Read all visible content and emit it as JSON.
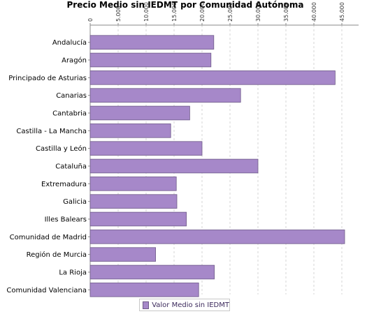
{
  "chart_data": {
    "type": "bar",
    "orientation": "horizontal",
    "title": "Precio Medio sin IEDMT por Comunidad Autónoma",
    "x_axis_position": "top",
    "xlim": [
      0,
      48000
    ],
    "x_ticks": [
      0,
      5000,
      10000,
      15000,
      20000,
      25000,
      30000,
      35000,
      40000,
      45000
    ],
    "x_tick_labels": [
      "0",
      "5.000",
      "10.000",
      "15.000",
      "20.000",
      "25.000",
      "30.000",
      "35.000",
      "40.000",
      "45.000"
    ],
    "grid": "vertical-dashed",
    "categories": [
      "Andalucía",
      "Aragón",
      "Principado de Asturias",
      "Canarias",
      "Cantabria",
      "Castilla - La Mancha",
      "Castilla y León",
      "Cataluña",
      "Extremadura",
      "Galicia",
      "Illes Balears",
      "Comunidad de Madrid",
      "Región de Murcia",
      "La Rioja",
      "Comunidad Valenciana"
    ],
    "series": [
      {
        "name": "Valor Medio sin IEDMT",
        "color": "#a688c9",
        "values": [
          22100,
          21600,
          43800,
          26900,
          17800,
          14400,
          20000,
          30000,
          15400,
          15500,
          17200,
          45500,
          11700,
          22200,
          19400
        ]
      }
    ],
    "legend_position": "bottom"
  },
  "colors": {
    "bar_fill": "#a688c9",
    "bar_stroke": "#6e5a88",
    "grid": "#d4d4d4",
    "axis": "#888888"
  }
}
